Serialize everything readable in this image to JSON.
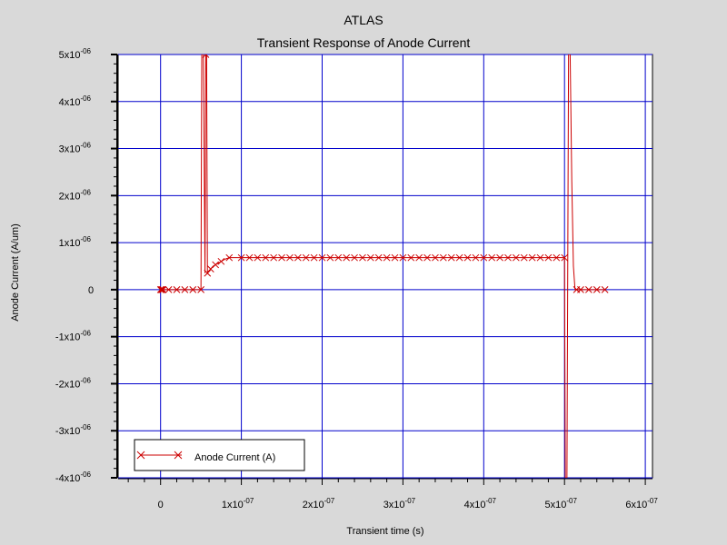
{
  "app": {
    "header": "ATLAS"
  },
  "chart_data": {
    "type": "line",
    "title": "Transient Response of Anode Current",
    "xlabel": "Transient time (s)",
    "ylabel": "Anode Current (A/um)",
    "xlim": [
      -5e-08,
      6e-07
    ],
    "ylim": [
      -4e-06,
      5e-06
    ],
    "grid": true,
    "x_ticks": [
      {
        "value": 0,
        "base": "0",
        "exp": ""
      },
      {
        "value": 1e-07,
        "base": "1x10",
        "exp": "-07"
      },
      {
        "value": 2e-07,
        "base": "2x10",
        "exp": "-07"
      },
      {
        "value": 3e-07,
        "base": "3x10",
        "exp": "-07"
      },
      {
        "value": 4e-07,
        "base": "4x10",
        "exp": "-07"
      },
      {
        "value": 5e-07,
        "base": "5x10",
        "exp": "-07"
      },
      {
        "value": 6e-07,
        "base": "6x10",
        "exp": "-07"
      }
    ],
    "y_ticks": [
      {
        "value": 5e-06,
        "base": "5x10",
        "exp": "-06"
      },
      {
        "value": 4e-06,
        "base": "4x10",
        "exp": "-06"
      },
      {
        "value": 3e-06,
        "base": "3x10",
        "exp": "-06"
      },
      {
        "value": 2e-06,
        "base": "2x10",
        "exp": "-06"
      },
      {
        "value": 1e-06,
        "base": "1x10",
        "exp": "-06"
      },
      {
        "value": 0,
        "base": "0",
        "exp": ""
      },
      {
        "value": -1e-06,
        "base": "-1x10",
        "exp": "-06"
      },
      {
        "value": -2e-06,
        "base": "-2x10",
        "exp": "-06"
      },
      {
        "value": -3e-06,
        "base": "-3x10",
        "exp": "-06"
      },
      {
        "value": -4e-06,
        "base": "-4x10",
        "exp": "-06"
      }
    ],
    "legend": {
      "position": "bottom-left",
      "label": "Anode Current (A)"
    },
    "series": [
      {
        "name": "Anode Current (A)",
        "color": "#cc0000",
        "marker": "x",
        "points": [
          [
            0,
            0
          ],
          [
            1e-09,
            0
          ],
          [
            2e-09,
            0
          ],
          [
            3e-09,
            0
          ],
          [
            5e-09,
            0
          ],
          [
            1e-08,
            0
          ],
          [
            2e-08,
            0
          ],
          [
            3e-08,
            0
          ],
          [
            4e-08,
            0
          ],
          [
            5e-08,
            0
          ],
          [
            5.1e-08,
            5e-06
          ],
          [
            5.3e-08,
            5e-06
          ],
          [
            5.5e-08,
            3.5e-07
          ],
          [
            5.6e-08,
            5e-06
          ],
          [
            5.7e-08,
            5e-06
          ],
          [
            5.8e-08,
            3.5e-07
          ],
          [
            6e-08,
            4e-07
          ],
          [
            6.5e-08,
            5e-07
          ],
          [
            7e-08,
            5.5e-07
          ],
          [
            8e-08,
            6.5e-07
          ],
          [
            8.5e-08,
            6.8e-07
          ],
          [
            9e-08,
            6.8e-07
          ],
          [
            1e-07,
            6.8e-07
          ],
          [
            1.5e-07,
            6.8e-07
          ],
          [
            2e-07,
            6.8e-07
          ],
          [
            2.5e-07,
            6.8e-07
          ],
          [
            3e-07,
            6.8e-07
          ],
          [
            3.5e-07,
            6.8e-07
          ],
          [
            4e-07,
            6.8e-07
          ],
          [
            4.5e-07,
            6.8e-07
          ],
          [
            4.95e-07,
            6.8e-07
          ],
          [
            5e-07,
            6.8e-07
          ],
          [
            5.01e-07,
            -4e-06
          ],
          [
            5.03e-07,
            -4e-06
          ],
          [
            5.05e-07,
            5e-06
          ],
          [
            5.07e-07,
            5e-06
          ],
          [
            5.09e-07,
            2.3e-06
          ],
          [
            5.11e-07,
            5e-07
          ],
          [
            5.13e-07,
            0
          ],
          [
            5.2e-07,
            0
          ],
          [
            5.3e-07,
            0
          ],
          [
            5.4e-07,
            0
          ],
          [
            5.5e-07,
            0
          ]
        ],
        "marker_x": [
          0,
          1e-09,
          2e-09,
          3e-09,
          1e-08,
          2e-08,
          3e-08,
          4e-08,
          5e-08,
          5.6e-08,
          5.8e-08,
          6.2e-08,
          6.8e-08,
          7.5e-08,
          8.5e-08,
          1e-07,
          1.1e-07,
          1.2e-07,
          1.3e-07,
          1.4e-07,
          1.5e-07,
          1.6e-07,
          1.7e-07,
          1.8e-07,
          1.9e-07,
          2e-07,
          2.1e-07,
          2.2e-07,
          2.3e-07,
          2.4e-07,
          2.5e-07,
          2.6e-07,
          2.7e-07,
          2.8e-07,
          2.9e-07,
          3e-07,
          3.1e-07,
          3.2e-07,
          3.3e-07,
          3.4e-07,
          3.5e-07,
          3.6e-07,
          3.7e-07,
          3.8e-07,
          3.9e-07,
          4e-07,
          4.1e-07,
          4.2e-07,
          4.3e-07,
          4.4e-07,
          4.5e-07,
          4.6e-07,
          4.7e-07,
          4.8e-07,
          4.9e-07,
          5e-07,
          5.15e-07,
          5.2e-07,
          5.3e-07,
          5.4e-07,
          5.5e-07
        ]
      }
    ]
  }
}
